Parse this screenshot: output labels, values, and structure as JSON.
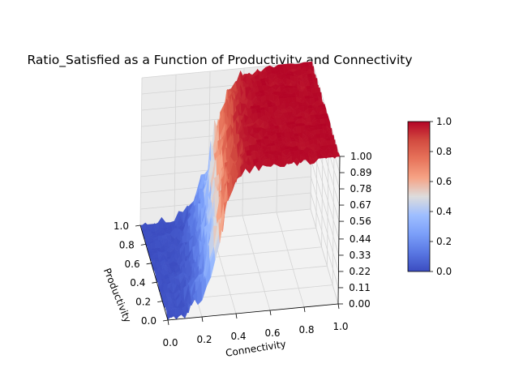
{
  "chart_data": {
    "type": "surface3d",
    "title": "Ratio_Satisfied as a Function of Productivity and Connectivity",
    "xlabel": "Productivity",
    "ylabel": "Connectivity",
    "zlabel": "",
    "x_ticks": [
      "0.0",
      "0.2",
      "0.4",
      "0.6",
      "0.8",
      "1.0"
    ],
    "y_ticks": [
      "0.0",
      "0.2",
      "0.4",
      "0.6",
      "0.8",
      "1.0"
    ],
    "z_ticks": [
      "0.00",
      "0.11",
      "0.22",
      "0.33",
      "0.44",
      "0.56",
      "0.67",
      "0.78",
      "0.89",
      "1.00"
    ],
    "xlim": [
      0,
      1
    ],
    "ylim": [
      0,
      1
    ],
    "zlim": [
      0,
      1
    ],
    "colormap": "coolwarm",
    "grid": true,
    "surface": {
      "description_of_shape": "noisy sigmoid: ratio ~0 at low connectivity, rising sharply around connectivity 0.2-0.4, ~1 at high connectivity; transition shifts to higher connectivity as productivity increases",
      "connectivity_midpoint_at_productivity_0": 0.28,
      "connectivity_midpoint_at_productivity_1": 0.42,
      "noise_amplitude": 0.15
    },
    "colorbar": {
      "ticks": [
        "0.0",
        "0.2",
        "0.4",
        "0.6",
        "0.8",
        "1.0"
      ],
      "range": [
        0,
        1
      ]
    }
  }
}
